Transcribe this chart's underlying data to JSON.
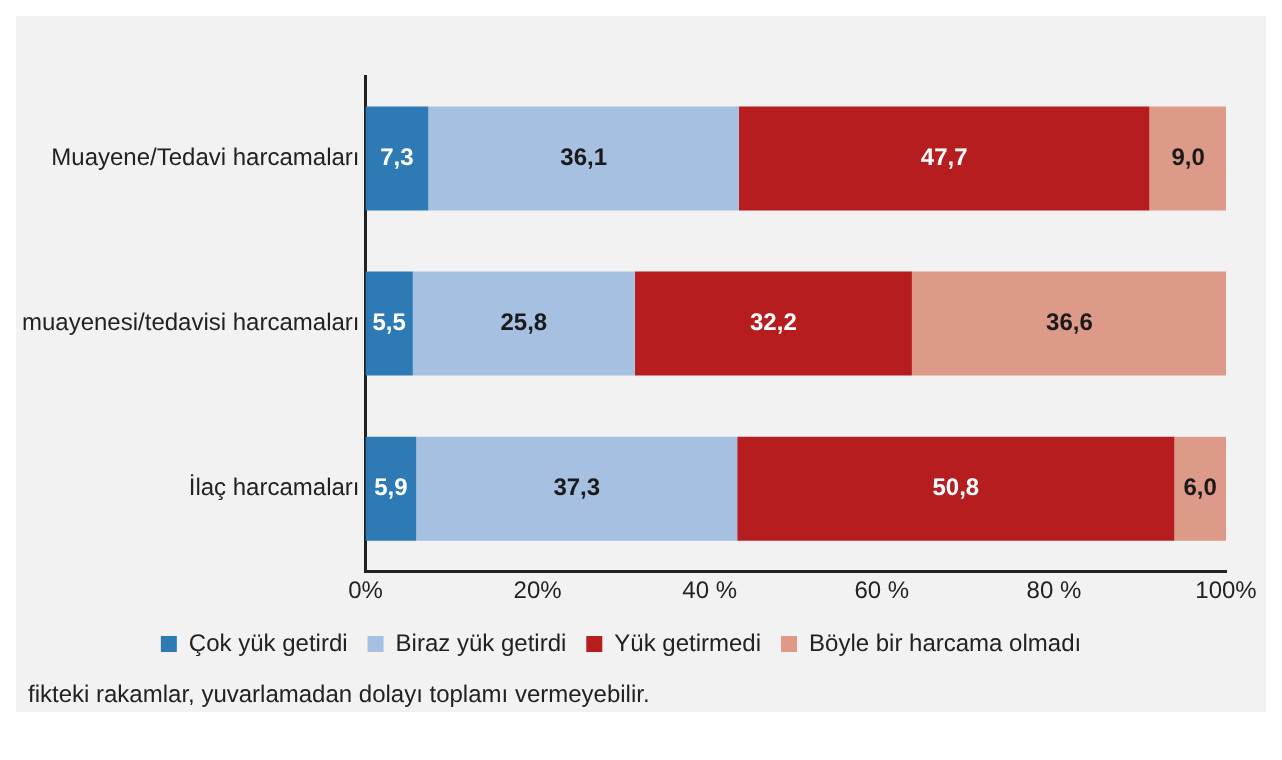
{
  "chart_data": {
    "type": "bar",
    "orientation": "horizontal",
    "stacked": true,
    "categories": [
      "Muayene/Tedavi harcamaları",
      "muayenesi/tedavisi harcamaları",
      "İlaç harcamaları"
    ],
    "series": [
      {
        "name": "Çok yük getirdi",
        "color": "#2e7ab5",
        "values": [
          7.3,
          5.5,
          5.9
        ],
        "value_labels": [
          "7,3",
          "5,5",
          "5,9"
        ]
      },
      {
        "name": "Biraz yük getirdi",
        "color": "#a6c0e2",
        "values": [
          36.1,
          25.8,
          37.3
        ],
        "value_labels": [
          "36,1",
          "25,8",
          "37,3"
        ]
      },
      {
        "name": "Yük getirmedi",
        "color": "#b51d1f",
        "values": [
          47.7,
          32.2,
          50.8
        ],
        "value_labels": [
          "47,7",
          "32,2",
          "50,8"
        ]
      },
      {
        "name": "Böyle bir harcama olmadı",
        "color": "#dd9a88",
        "values": [
          9.0,
          36.6,
          6.0
        ],
        "value_labels": [
          "9,0",
          "36,6",
          "6,0"
        ]
      }
    ],
    "xlim": [
      0,
      100
    ],
    "xticks": [
      {
        "value": 0,
        "label": "0%"
      },
      {
        "value": 20,
        "label": "20%"
      },
      {
        "value": 40,
        "label": "40 %"
      },
      {
        "value": 60,
        "label": "60 %"
      },
      {
        "value": 80,
        "label": "80 %"
      },
      {
        "value": 100,
        "label": "100%"
      }
    ],
    "grid": false,
    "legend": "bottom",
    "annotations": [
      "fikteki rakamlar, yuvarlamadan dolayı toplamı vermeyebilir."
    ]
  }
}
